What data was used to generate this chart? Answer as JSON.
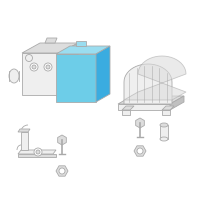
{
  "background_color": "#ffffff",
  "blue_fill": "#6dcde8",
  "blue_dark": "#3aace0",
  "blue_top": "#9addf0",
  "gray_line": "#aaaaaa",
  "gray_fill": "#efefef",
  "gray_medium": "#dddddd",
  "gray_dark": "#c0c0c0",
  "gray_body": "#e8e8e8",
  "figsize": [
    2.0,
    2.0
  ],
  "dpi": 100
}
